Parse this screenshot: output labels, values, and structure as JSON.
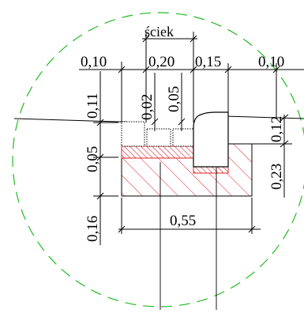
{
  "title": "ściek",
  "dimensions": {
    "top": [
      "0,10",
      "0,20",
      "0,15",
      "0,10"
    ],
    "left": [
      "0,11",
      "0,02",
      "0,05",
      "0,05",
      "0,16"
    ],
    "right": [
      "0,12",
      "0,23"
    ],
    "bottom": "0,55"
  },
  "colors": {
    "hatch": "#e0202a",
    "outline": "#000000",
    "detail_circle": "#22bb22"
  }
}
